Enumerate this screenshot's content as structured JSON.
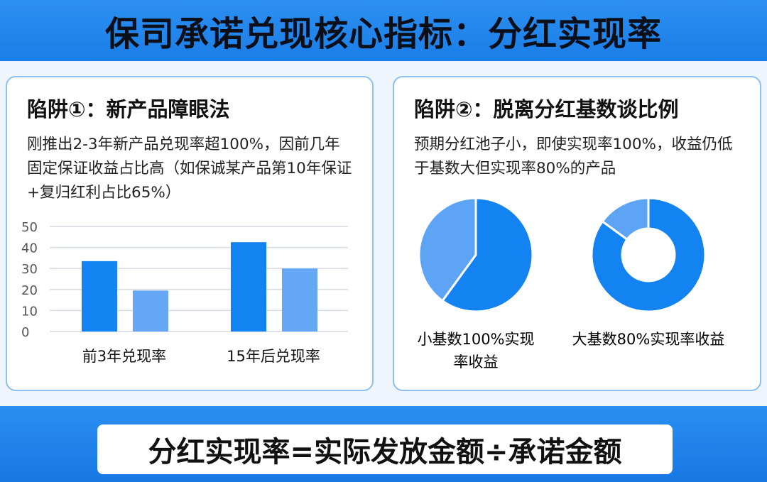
{
  "header": {
    "title": "保司承诺兑现核心指标：分红实现率"
  },
  "left": {
    "title": "陷阱①：新产品障眼法",
    "text": "刚推出2-3年新产品兑现率超100%，因前几年固定保证收益占比高（如保诚某产品第10年保证+复归红利占比65%）"
  },
  "right": {
    "title": "陷阱②：脱离分红基数谈比例",
    "text": "预期分红池子小，即使实现率100%，收益仍低于基数大但实现率80%的产品"
  },
  "formula": "分红实现率=实际发放金额÷承诺金额",
  "colors": {
    "dark": "#1283f0",
    "light": "#64a8f5"
  },
  "chart_data": [
    {
      "type": "bar",
      "categories": [
        "前3年兑现率",
        "15年后兑现率"
      ],
      "series": [
        {
          "values": [
            33.5,
            42.5
          ],
          "color": "#1283f0"
        },
        {
          "values": [
            19.5,
            30
          ],
          "color": "#64a8f5"
        }
      ],
      "ylim": [
        0,
        50
      ],
      "yticks": [
        0,
        10,
        20,
        30,
        40,
        50
      ],
      "grid": true
    },
    {
      "type": "pie",
      "label": "小基数100%实现率收益",
      "values": [
        60,
        40
      ],
      "colors": [
        "#1283f0",
        "#5ea4f5"
      ]
    },
    {
      "type": "donut",
      "label": "大基数80%实现率收益",
      "values": [
        85,
        15
      ],
      "colors": [
        "#1283f0",
        "#5ea4f5"
      ]
    }
  ]
}
